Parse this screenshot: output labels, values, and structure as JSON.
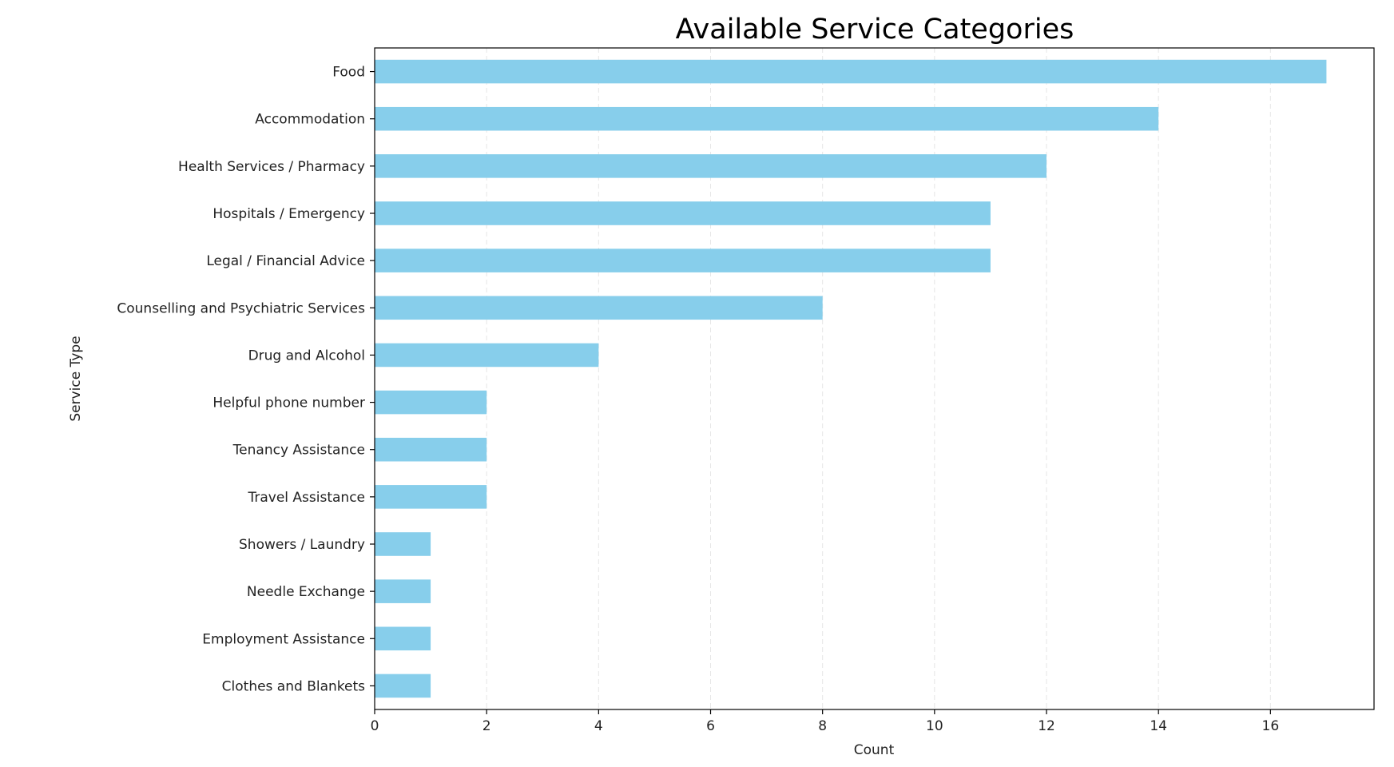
{
  "chart_data": {
    "type": "bar",
    "orientation": "horizontal",
    "title": "Available Service Categories",
    "xlabel": "Count",
    "ylabel": "Service Type",
    "categories": [
      "Food",
      "Accommodation",
      "Health Services / Pharmacy",
      "Hospitals / Emergency",
      "Legal / Financial Advice",
      "Counselling and Psychiatric Services",
      "Drug and Alcohol",
      "Helpful phone number",
      "Tenancy Assistance",
      "Travel Assistance",
      "Showers / Laundry",
      "Needle Exchange",
      "Employment Assistance",
      "Clothes and Blankets"
    ],
    "values": [
      17,
      14,
      12,
      11,
      11,
      8,
      4,
      2,
      2,
      2,
      1,
      1,
      1,
      1
    ],
    "xlim": [
      0,
      17.85
    ],
    "xticks": [
      0,
      2,
      4,
      6,
      8,
      10,
      12,
      14,
      16
    ],
    "grid": "vertical dashed",
    "bar_color": "#87CEEB",
    "grid_color": "#e6e6e6",
    "axis_color": "#000000"
  }
}
